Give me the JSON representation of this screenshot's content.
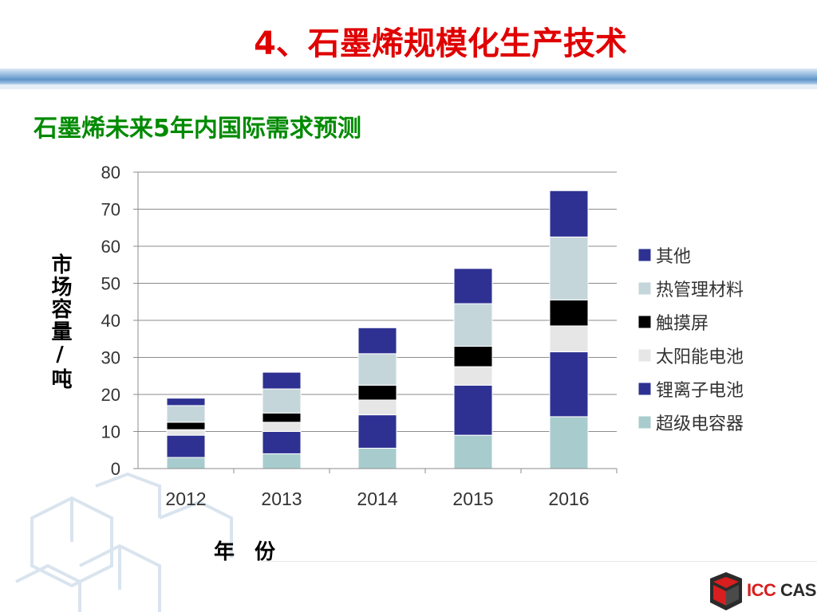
{
  "slide": {
    "title": "4、石墨烯规模化生产技术",
    "subtitle": "石墨烯未来5年内国际需求预测"
  },
  "logo": {
    "part1": "ICC",
    "part2": "CAS"
  },
  "chart_data": {
    "type": "bar",
    "stacked": true,
    "title": "",
    "xlabel": "年 份",
    "ylabel": "市场容量/吨",
    "ylim": [
      0,
      80
    ],
    "yticks": [
      0,
      10,
      20,
      30,
      40,
      50,
      60,
      70,
      80
    ],
    "grid": true,
    "legend_position": "right",
    "categories": [
      "2012",
      "2013",
      "2014",
      "2015",
      "2016"
    ],
    "series": [
      {
        "name": "超级电容器",
        "color": "#a8cccd",
        "values": [
          3,
          4,
          5.5,
          9,
          14
        ]
      },
      {
        "name": "锂离子电池",
        "color": "#2e3192",
        "values": [
          6,
          6,
          9,
          13.5,
          17.5
        ]
      },
      {
        "name": "太阳能电池",
        "color": "#e6e6e6",
        "values": [
          1.5,
          2.5,
          4,
          5,
          7
        ]
      },
      {
        "name": "触摸屏",
        "color": "#000000",
        "values": [
          2,
          2.5,
          4,
          5.5,
          7
        ]
      },
      {
        "name": "热管理材料",
        "color": "#c5d6db",
        "values": [
          4.5,
          6.5,
          8.5,
          11.5,
          17
        ]
      },
      {
        "name": "其他",
        "color": "#2e3192",
        "values": [
          2,
          4.5,
          7,
          9.5,
          12.5
        ]
      }
    ],
    "legend_order": [
      "其他",
      "热管理材料",
      "触摸屏",
      "太阳能电池",
      "锂离子电池",
      "超级电容器"
    ]
  }
}
